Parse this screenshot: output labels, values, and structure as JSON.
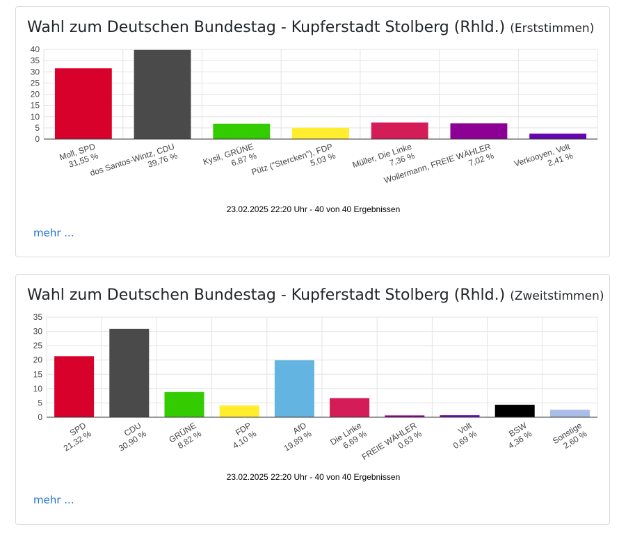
{
  "chart_data": [
    {
      "type": "bar",
      "title": "Wahl zum Deutschen Bundestag - Kupferstadt Stolberg (Rhld.)",
      "subtitle": "(Erststimmen)",
      "categories": [
        "Moll, SPD",
        "dos Santos-Wintz, CDU",
        "Kysil, GRÜNE",
        "Pütz (\"Stercken\"), FDP",
        "Müller, Die Linke",
        "Wollermann, FREIE WÄHLER",
        "Verkooyen, Volt"
      ],
      "values": [
        31.55,
        39.76,
        6.87,
        5.03,
        7.36,
        7.02,
        2.41
      ],
      "value_labels": [
        "31,55 %",
        "39,76 %",
        "6,87 %",
        "5,03 %",
        "7,36 %",
        "7,02 %",
        "2,41 %"
      ],
      "colors": [
        "#d8012b",
        "#4a4a4a",
        "#33cc00",
        "#ffed2e",
        "#d31c58",
        "#8c0096",
        "#6507b0"
      ],
      "yticks": [
        "0",
        "5",
        "10",
        "15",
        "20",
        "25",
        "30",
        "35",
        "40"
      ],
      "ylim": [
        0,
        40
      ],
      "grid": true,
      "footer": "23.02.2025 22:20 Uhr - 40 von 40 Ergebnissen",
      "link": "mehr ..."
    },
    {
      "type": "bar",
      "title": "Wahl zum Deutschen Bundestag - Kupferstadt Stolberg (Rhld.)",
      "subtitle": "(Zweitstimmen)",
      "categories": [
        "SPD",
        "CDU",
        "GRÜNE",
        "FDP",
        "AfD",
        "Die Linke",
        "FREIE WÄHLER",
        "Volt",
        "BSW",
        "Sonstige"
      ],
      "values": [
        21.32,
        30.9,
        8.82,
        4.1,
        19.89,
        6.69,
        0.63,
        0.69,
        4.36,
        2.6
      ],
      "value_labels": [
        "21,32 %",
        "30,90 %",
        "8,82 %",
        "4,10 %",
        "19,89 %",
        "6,69 %",
        "0,63 %",
        "0,69 %",
        "4,36 %",
        "2,60 %"
      ],
      "colors": [
        "#d8012b",
        "#4a4a4a",
        "#33cc00",
        "#ffed2e",
        "#63b4e0",
        "#d31c58",
        "#8c0096",
        "#6507b0",
        "#000000",
        "#a9bde8"
      ],
      "yticks": [
        "0",
        "5",
        "10",
        "15",
        "20",
        "25",
        "30",
        "35"
      ],
      "ylim": [
        0,
        35
      ],
      "grid": true,
      "footer": "23.02.2025 22:20 Uhr - 40 von 40 Ergebnissen",
      "link": "mehr ..."
    }
  ]
}
